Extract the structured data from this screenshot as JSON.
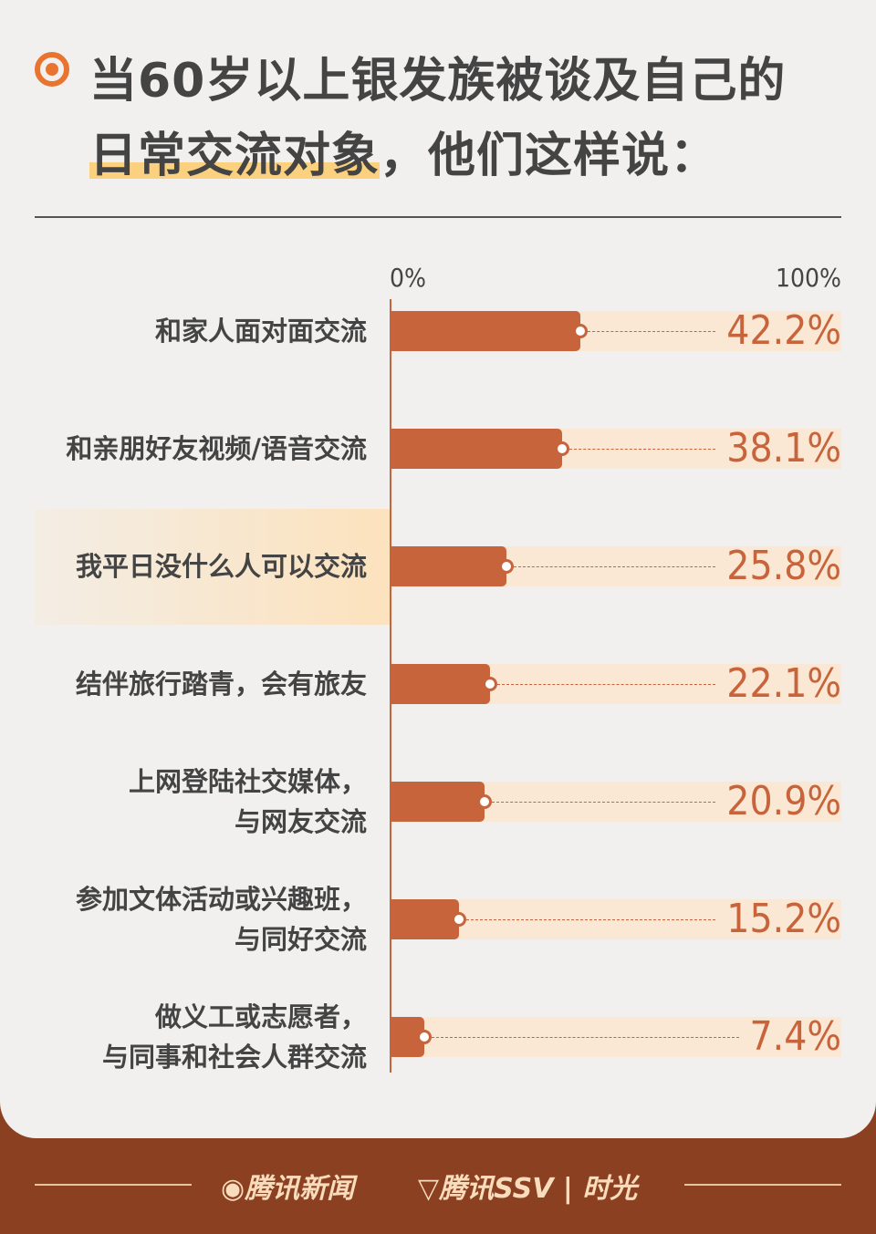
{
  "header": {
    "title_line1": "当60岁以上银发族被谈及自己的",
    "title_line2_highlight": "日常交流对象",
    "title_line2_rest": "，他们这样说："
  },
  "chart_data": {
    "type": "bar",
    "orientation": "horizontal",
    "xlim": [
      0,
      100
    ],
    "x_tick_labels": [
      "0%",
      "100%"
    ],
    "categories": [
      "和家人面对面交流",
      "和亲朋好友视频/语音交流",
      "我平日没什么人可以交流",
      "结伴旅行踏青，会有旅友",
      "上网登陆社交媒体，\n与网友交流",
      "参加文体活动或兴趣班，\n与同好交流",
      "做义工或志愿者，\n与同事和社会人群交流"
    ],
    "values": [
      42.2,
      38.1,
      25.8,
      22.1,
      20.9,
      15.2,
      7.4
    ],
    "value_labels": [
      "42.2%",
      "38.1%",
      "25.8%",
      "22.1%",
      "20.9%",
      "15.2%",
      "7.4%"
    ],
    "highlighted_category": "我平日没什么人可以交流",
    "colors": {
      "bar": "#c8643b",
      "track": "#fbe8d4",
      "highlight": "#fce2bd"
    }
  },
  "footer": {
    "logo1": "腾讯新闻",
    "logo2": "腾讯SSV | 时光"
  }
}
